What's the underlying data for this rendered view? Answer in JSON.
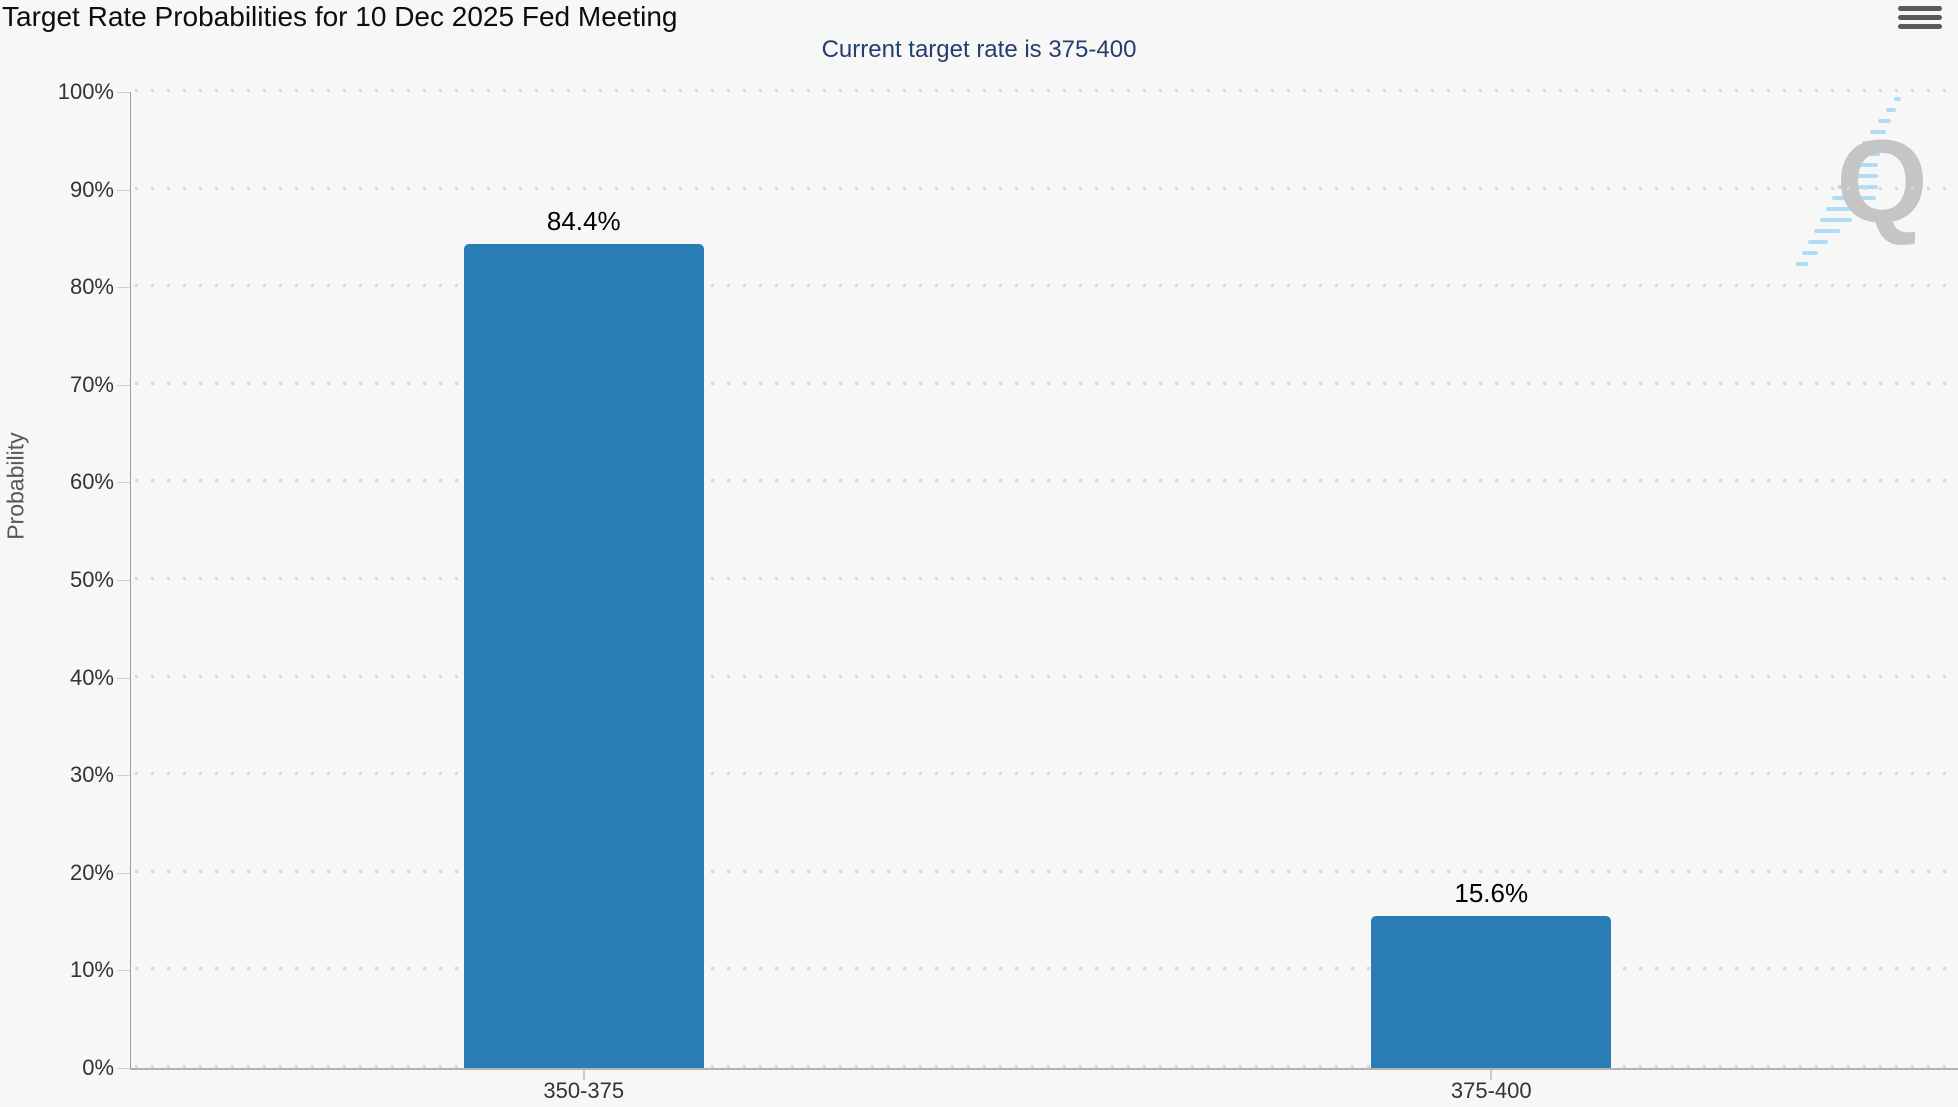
{
  "header": {
    "title": "Target Rate Probabilities for 10 Dec 2025 Fed Meeting",
    "menu_tooltip": "Chart context menu"
  },
  "watermark": {
    "letter": "Q"
  },
  "chart_data": {
    "type": "bar",
    "title": "Target Rate Probabilities for 10 Dec 2025 Fed Meeting",
    "subtitle": "Current target rate is 375-400",
    "categories": [
      "350-375",
      "375-400"
    ],
    "values": [
      84.4,
      15.6
    ],
    "value_labels": [
      "84.4%",
      "15.6%"
    ],
    "xlabel": "",
    "ylabel": "Probability",
    "ylim": [
      0,
      100
    ],
    "ytick_step": 10,
    "yticks": [
      "0%",
      "10%",
      "20%",
      "30%",
      "40%",
      "50%",
      "60%",
      "70%",
      "80%",
      "90%",
      "100%"
    ],
    "grid": "dotted horizontal gridlines, on",
    "legend_position": "none",
    "colors": {
      "bar": "#2a7db4",
      "background": "#f7f7f7",
      "subtitle_text": "#253e6e",
      "axis_label_text": "#333333",
      "axis_title_text": "#58585a",
      "gridline": "#d8d8d8",
      "axis_line": "#b3b3b3",
      "watermark_q": "#c5c5c5",
      "watermark_stripes": "#b0dcf5"
    }
  }
}
